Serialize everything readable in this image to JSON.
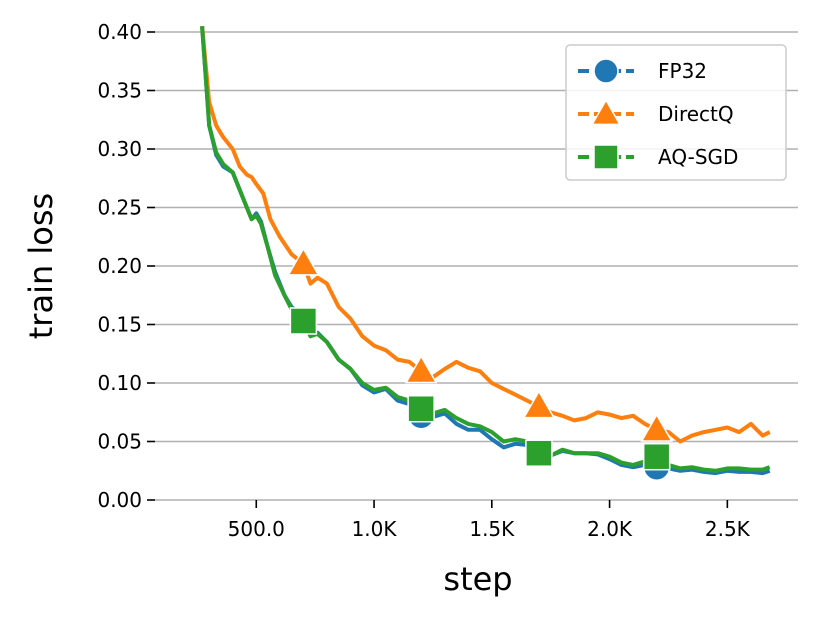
{
  "chart_data": {
    "type": "line",
    "title": "",
    "xlabel": "step",
    "ylabel": "train loss",
    "xlim": [
      70,
      2800
    ],
    "ylim": [
      0,
      0.4
    ],
    "grid": "horizontal",
    "legend_position": "top-right",
    "x_ticks": [
      {
        "value": 500,
        "label": "500.0"
      },
      {
        "value": 1000,
        "label": "1.0K"
      },
      {
        "value": 1500,
        "label": "1.5K"
      },
      {
        "value": 2000,
        "label": "2.0K"
      },
      {
        "value": 2500,
        "label": "2.5K"
      }
    ],
    "y_ticks": [
      {
        "value": 0.0,
        "label": "0.00"
      },
      {
        "value": 0.05,
        "label": "0.05"
      },
      {
        "value": 0.1,
        "label": "0.10"
      },
      {
        "value": 0.15,
        "label": "0.15"
      },
      {
        "value": 0.2,
        "label": "0.20"
      },
      {
        "value": 0.25,
        "label": "0.25"
      },
      {
        "value": 0.3,
        "label": "0.30"
      },
      {
        "value": 0.35,
        "label": "0.35"
      },
      {
        "value": 0.4,
        "label": "0.40"
      }
    ],
    "series": [
      {
        "name": "FP32",
        "color": "#1f77b4",
        "marker": "circle",
        "markers": [
          {
            "x": 700,
            "y": 0.153
          },
          {
            "x": 1200,
            "y": 0.072
          },
          {
            "x": 1700,
            "y": 0.04
          },
          {
            "x": 2200,
            "y": 0.028
          }
        ],
        "x": [
          270,
          300,
          330,
          360,
          400,
          450,
          480,
          500,
          520,
          550,
          580,
          620,
          650,
          680,
          700,
          730,
          760,
          800,
          850,
          900,
          950,
          1000,
          1050,
          1100,
          1150,
          1200,
          1250,
          1300,
          1350,
          1400,
          1450,
          1500,
          1550,
          1600,
          1650,
          1700,
          1750,
          1800,
          1850,
          1900,
          1950,
          2000,
          2050,
          2100,
          2150,
          2200,
          2250,
          2300,
          2350,
          2400,
          2450,
          2500,
          2550,
          2600,
          2650,
          2680
        ],
        "y": [
          0.405,
          0.32,
          0.295,
          0.285,
          0.28,
          0.255,
          0.24,
          0.245,
          0.238,
          0.215,
          0.195,
          0.175,
          0.165,
          0.16,
          0.153,
          0.14,
          0.143,
          0.135,
          0.12,
          0.112,
          0.098,
          0.092,
          0.095,
          0.085,
          0.082,
          0.072,
          0.071,
          0.074,
          0.065,
          0.06,
          0.06,
          0.052,
          0.045,
          0.048,
          0.047,
          0.04,
          0.038,
          0.042,
          0.04,
          0.04,
          0.039,
          0.035,
          0.03,
          0.028,
          0.03,
          0.028,
          0.027,
          0.025,
          0.026,
          0.024,
          0.023,
          0.025,
          0.024,
          0.024,
          0.023,
          0.025
        ]
      },
      {
        "name": "DirectQ",
        "color": "#ff7f0e",
        "marker": "triangle",
        "markers": [
          {
            "x": 700,
            "y": 0.202
          },
          {
            "x": 1200,
            "y": 0.11
          },
          {
            "x": 1700,
            "y": 0.08
          },
          {
            "x": 2200,
            "y": 0.06
          }
        ],
        "x": [
          270,
          300,
          330,
          360,
          400,
          430,
          460,
          480,
          500,
          530,
          560,
          600,
          650,
          700,
          730,
          760,
          800,
          850,
          900,
          950,
          1000,
          1050,
          1100,
          1150,
          1200,
          1250,
          1300,
          1350,
          1400,
          1450,
          1500,
          1550,
          1600,
          1650,
          1700,
          1750,
          1800,
          1850,
          1900,
          1950,
          2000,
          2050,
          2100,
          2150,
          2200,
          2250,
          2300,
          2350,
          2400,
          2450,
          2500,
          2550,
          2600,
          2650,
          2680
        ],
        "y": [
          0.405,
          0.34,
          0.32,
          0.31,
          0.3,
          0.285,
          0.278,
          0.276,
          0.27,
          0.262,
          0.24,
          0.225,
          0.21,
          0.202,
          0.185,
          0.19,
          0.185,
          0.165,
          0.155,
          0.14,
          0.132,
          0.128,
          0.12,
          0.118,
          0.11,
          0.105,
          0.112,
          0.118,
          0.113,
          0.11,
          0.1,
          0.095,
          0.09,
          0.085,
          0.08,
          0.075,
          0.072,
          0.068,
          0.07,
          0.075,
          0.073,
          0.07,
          0.072,
          0.065,
          0.06,
          0.058,
          0.05,
          0.055,
          0.058,
          0.06,
          0.062,
          0.058,
          0.065,
          0.055,
          0.058
        ]
      },
      {
        "name": "AQ-SGD",
        "color": "#2ca02c",
        "marker": "square",
        "markers": [
          {
            "x": 700,
            "y": 0.153
          },
          {
            "x": 1200,
            "y": 0.078
          },
          {
            "x": 1700,
            "y": 0.04
          },
          {
            "x": 2200,
            "y": 0.037
          }
        ],
        "x": [
          270,
          300,
          330,
          360,
          400,
          450,
          480,
          500,
          520,
          550,
          580,
          620,
          650,
          680,
          700,
          730,
          760,
          800,
          850,
          900,
          950,
          1000,
          1050,
          1100,
          1150,
          1200,
          1250,
          1300,
          1350,
          1400,
          1450,
          1500,
          1550,
          1600,
          1650,
          1700,
          1750,
          1800,
          1850,
          1900,
          1950,
          2000,
          2050,
          2100,
          2150,
          2200,
          2250,
          2300,
          2350,
          2400,
          2450,
          2500,
          2550,
          2600,
          2650,
          2680
        ],
        "y": [
          0.405,
          0.32,
          0.297,
          0.287,
          0.28,
          0.255,
          0.24,
          0.243,
          0.236,
          0.215,
          0.192,
          0.175,
          0.163,
          0.158,
          0.153,
          0.14,
          0.142,
          0.135,
          0.12,
          0.112,
          0.1,
          0.094,
          0.096,
          0.088,
          0.085,
          0.078,
          0.074,
          0.077,
          0.07,
          0.065,
          0.063,
          0.058,
          0.05,
          0.052,
          0.05,
          0.04,
          0.038,
          0.043,
          0.04,
          0.04,
          0.04,
          0.037,
          0.032,
          0.03,
          0.033,
          0.037,
          0.03,
          0.027,
          0.028,
          0.026,
          0.025,
          0.027,
          0.027,
          0.026,
          0.026,
          0.028
        ]
      }
    ]
  }
}
